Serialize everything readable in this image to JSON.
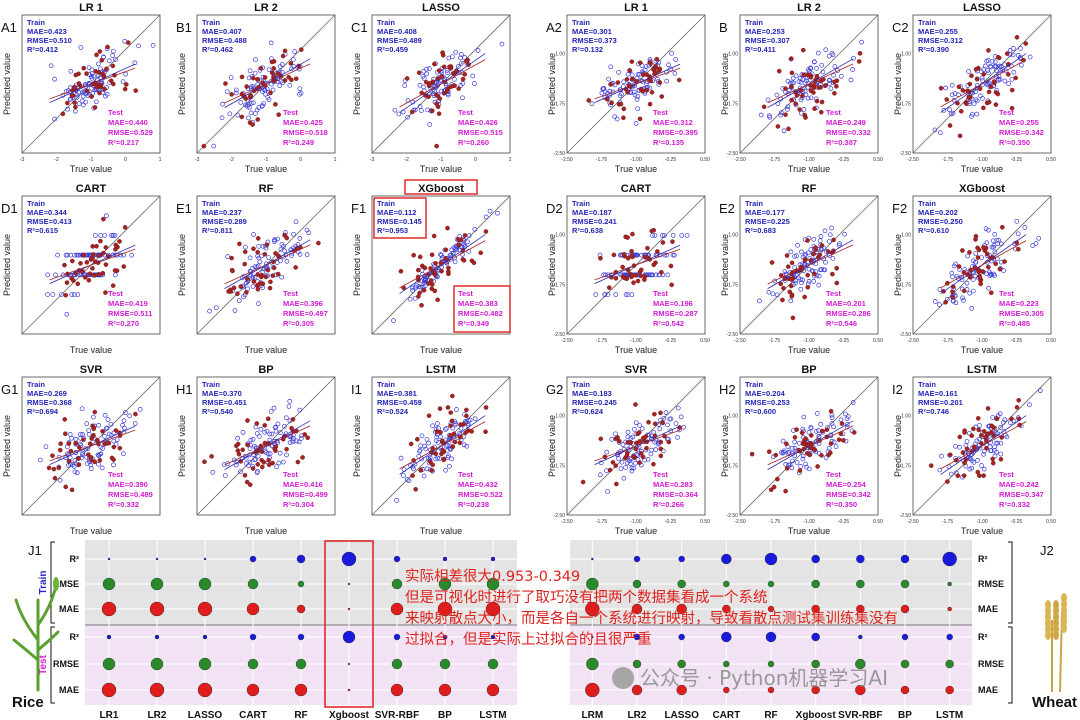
{
  "chart_data": {
    "type": "scatter",
    "x_label": "True value",
    "y_label": "Predicted value",
    "rice_x_ticks": [
      "-3",
      "-2",
      "-1",
      "0",
      "1"
    ],
    "wheat_x_ticks": [
      "-2.50",
      "-1.75",
      "-1.00",
      "-0.25",
      "0.50"
    ],
    "wheat_y_ticks": [
      "-1.00",
      "-1.75",
      "-2.50"
    ],
    "train_label": "Train",
    "test_label": "Test",
    "panels": [
      {
        "id": "A1",
        "model": "LR 1",
        "crop": "rice",
        "train": {
          "mae": "MAE=0.423",
          "rmse": "RMSE=0.510",
          "r2": "R²=0.412"
        },
        "test": {
          "mae": "MAE=0.440",
          "rmse": "RMSE=0.529",
          "r2": "R²=0.217"
        }
      },
      {
        "id": "B1",
        "model": "LR 2",
        "crop": "rice",
        "train": {
          "mae": "MAE=0.407",
          "rmse": "RMSE=0.488",
          "r2": "R²=0.462"
        },
        "test": {
          "mae": "MAE=0.425",
          "rmse": "RMSE=0.518",
          "r2": "R²=0.249"
        }
      },
      {
        "id": "C1",
        "model": "LASSO",
        "crop": "rice",
        "train": {
          "mae": "MAE=0.408",
          "rmse": "RMSE=0.489",
          "r2": "R²=0.459"
        },
        "test": {
          "mae": "MAE=0.426",
          "rmse": "RMSE=0.515",
          "r2": "R²=0.260"
        }
      },
      {
        "id": "A2",
        "model": "LR 1",
        "crop": "wheat",
        "train": {
          "mae": "MAE=0.301",
          "rmse": "RMSE=0.373",
          "r2": "R²=0.132"
        },
        "test": {
          "mae": "MAE=0.312",
          "rmse": "RMSE=0.395",
          "r2": "R²=0.135"
        }
      },
      {
        "id": "B",
        "model": "LR 2",
        "crop": "wheat",
        "train": {
          "mae": "MAE=0.253",
          "rmse": "RMSE=0.307",
          "r2": "R²=0.411"
        },
        "test": {
          "mae": "MAE=0.249",
          "rmse": "RMSE=0.332",
          "r2": "R²=0.387"
        }
      },
      {
        "id": "C2",
        "model": "LASSO",
        "crop": "wheat",
        "train": {
          "mae": "MAE=0.255",
          "rmse": "RMSE=0.312",
          "r2": "R²=0.390"
        },
        "test": {
          "mae": "MAE=0.255",
          "rmse": "RMSE=0.342",
          "r2": "R²=0.350"
        }
      },
      {
        "id": "D1",
        "model": "CART",
        "crop": "rice",
        "train": {
          "mae": "MAE=0.344",
          "rmse": "RMSE=0.413",
          "r2": "R²=0.615"
        },
        "test": {
          "mae": "MAE=0.419",
          "rmse": "RMSE=0.511",
          "r2": "R²=0.270"
        }
      },
      {
        "id": "E1",
        "model": "RF",
        "crop": "rice",
        "train": {
          "mae": "MAE=0.237",
          "rmse": "RMSE=0.289",
          "r2": "R²=0.811"
        },
        "test": {
          "mae": "MAE=0.396",
          "rmse": "RMSE=0.497",
          "r2": "R²=0.305"
        }
      },
      {
        "id": "F1",
        "model": "XGboost",
        "crop": "rice",
        "highlight": true,
        "train": {
          "mae": "MAE=0.112",
          "rmse": "RMSE=0.145",
          "r2": "R²=0.953"
        },
        "test": {
          "mae": "MAE=0.383",
          "rmse": "RMSE=0.482",
          "r2": "R²=0.349"
        }
      },
      {
        "id": "D2",
        "model": "CART",
        "crop": "wheat",
        "train": {
          "mae": "MAE=0.187",
          "rmse": "RMSE=0.241",
          "r2": "R²=0.638"
        },
        "test": {
          "mae": "MAE=0.196",
          "rmse": "RMSE=0.287",
          "r2": "R²=0.542"
        }
      },
      {
        "id": "E2",
        "model": "RF",
        "crop": "wheat",
        "train": {
          "mae": "MAE=0.177",
          "rmse": "RMSE=0.225",
          "r2": "R²=0.683"
        },
        "test": {
          "mae": "MAE=0.201",
          "rmse": "RMSE=0.286",
          "r2": "R²=0.546"
        }
      },
      {
        "id": "F2",
        "model": "XGboost",
        "crop": "wheat",
        "train": {
          "mae": "MAE=0.202",
          "rmse": "RMSE=0.250",
          "r2": "R²=0.610"
        },
        "test": {
          "mae": "MAE=0.223",
          "rmse": "RMSE=0.305",
          "r2": "R²=0.485"
        }
      },
      {
        "id": "G1",
        "model": "SVR",
        "crop": "rice",
        "train": {
          "mae": "MAE=0.269",
          "rmse": "RMSE=0.368",
          "r2": "R²=0.694"
        },
        "test": {
          "mae": "MAE=0.390",
          "rmse": "RMSE=0.489",
          "r2": "R²=0.332"
        }
      },
      {
        "id": "H1",
        "model": "BP",
        "crop": "rice",
        "train": {
          "mae": "MAE=0.370",
          "rmse": "RMSE=0.451",
          "r2": "R²=0.540"
        },
        "test": {
          "mae": "MAE=0.416",
          "rmse": "RMSE=0.499",
          "r2": "R²=0.304"
        }
      },
      {
        "id": "I1",
        "model": "LSTM",
        "crop": "rice",
        "train": {
          "mae": "MAE=0.381",
          "rmse": "RMSE=0.459",
          "r2": "R²=0.524"
        },
        "test": {
          "mae": "MAE=0.432",
          "rmse": "RMSE=0.522",
          "r2": "R²=0.238"
        }
      },
      {
        "id": "G2",
        "model": "SVR",
        "crop": "wheat",
        "train": {
          "mae": "MAE=0.183",
          "rmse": "RMSE=0.245",
          "r2": "R²=0.624"
        },
        "test": {
          "mae": "MAE=0.283",
          "rmse": "RMSE=0.364",
          "r2": "R²=0.266"
        }
      },
      {
        "id": "H2",
        "model": "BP",
        "crop": "wheat",
        "train": {
          "mae": "MAE=0.204",
          "rmse": "RMSE=0.253",
          "r2": "R²=0.600"
        },
        "test": {
          "mae": "MAE=0.254",
          "rmse": "RMSE=0.342",
          "r2": "R²=0.350"
        }
      },
      {
        "id": "I2",
        "model": "LSTM",
        "crop": "wheat",
        "train": {
          "mae": "MAE=0.161",
          "rmse": "RMSE=0.201",
          "r2": "R²=0.746"
        },
        "test": {
          "mae": "MAE=0.242",
          "rmse": "RMSE=0.347",
          "r2": "R²=0.332"
        }
      }
    ],
    "bubble": {
      "j1_label": "J1",
      "j2_label": "J2",
      "rice_label": "Rice",
      "wheat_label": "Wheat",
      "train_label": "Train",
      "test_label": "Test",
      "rows": [
        "R²",
        "RMSE",
        "MAE"
      ],
      "j1_models": [
        "LR1",
        "LR2",
        "LASSO",
        "CART",
        "RF",
        "Xgboost",
        "SVR-RBF",
        "BP",
        "LSTM"
      ],
      "j2_models": [
        "LRM",
        "LR2",
        "LASSO",
        "CART",
        "RF",
        "Xgboost",
        "SVR-RBF",
        "BP",
        "LSTM"
      ],
      "highlight_model": "Xgboost",
      "colors": {
        "r2": "#1a1adf",
        "rmse": "#2a8a2a",
        "mae": "#e01d1d"
      }
    }
  },
  "annotation_lines": [
    "实际相差很大0.953-0.349",
    "但是可视化时进行了取巧没有把两个数据集看成一个系统",
    "来映射散点大小，而是各自一个系统进行映射，导致看散点测试集训练集没有",
    "过拟合，但是实际上过拟合的且很严重"
  ],
  "watermark": "公众号 · Python机器学习AI"
}
